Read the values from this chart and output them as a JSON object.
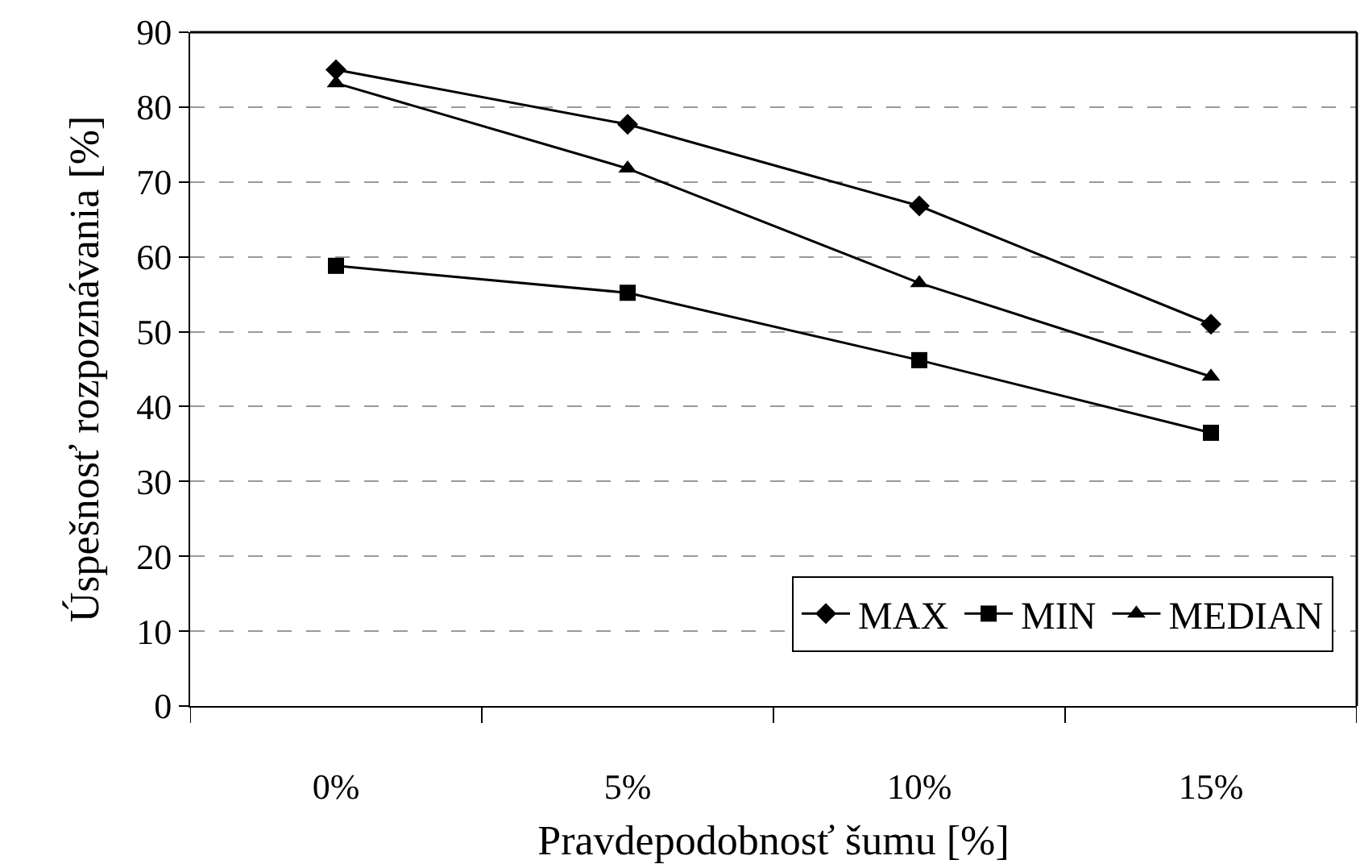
{
  "chart_data": {
    "type": "line",
    "xlabel": "Pravdepodobnosť šumu [%]",
    "ylabel": "Úspešnosť rozpoznávania [%]",
    "categories": [
      "0%",
      "5%",
      "10%",
      "15%"
    ],
    "series": [
      {
        "name": "MAX",
        "color": "#000000",
        "marker": "diamond",
        "values": [
          85,
          77.7,
          66.8,
          51
        ]
      },
      {
        "name": "MIN",
        "color": "#000000",
        "marker": "square",
        "values": [
          58.8,
          55.2,
          46.2,
          36.5
        ]
      },
      {
        "name": "MEDIAN",
        "color": "#000000",
        "marker": "triangle",
        "values": [
          83.2,
          71.8,
          56.5,
          44
        ]
      }
    ],
    "ylim": [
      0,
      90
    ],
    "yticks": [
      0,
      10,
      20,
      30,
      40,
      50,
      60,
      70,
      80,
      90
    ],
    "grid": "y",
    "legend": "bottom right",
    "line_style": "solid"
  }
}
